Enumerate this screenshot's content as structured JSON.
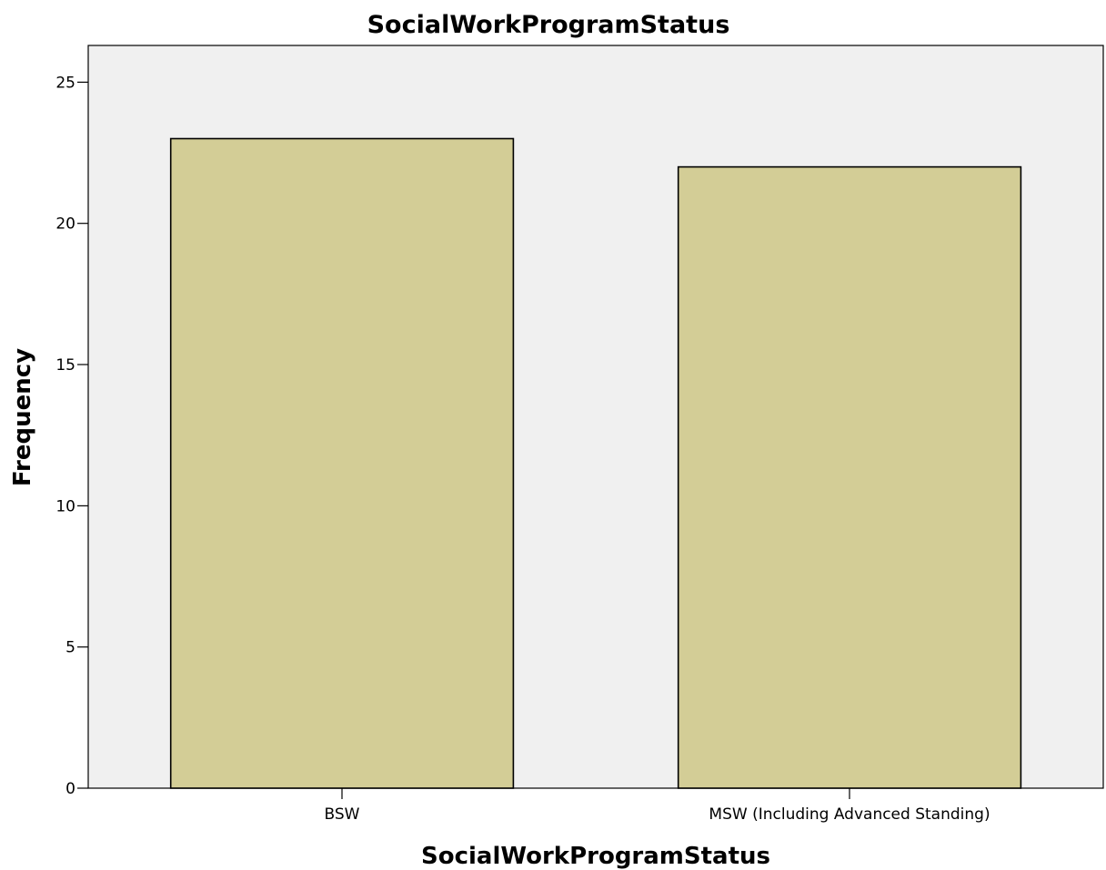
{
  "chart_data": {
    "type": "bar",
    "title": "SocialWorkProgramStatus",
    "xlabel": "SocialWorkProgramStatus",
    "ylabel": "Frequency",
    "categories": [
      "BSW",
      "MSW (Including Advanced Standing)"
    ],
    "values": [
      23,
      22
    ],
    "ylim": [
      0,
      26.3
    ],
    "yticks": [
      0,
      5,
      10,
      15,
      20,
      25
    ],
    "ytick_labels": [
      "0",
      "5",
      "10",
      "15",
      "20",
      "25"
    ],
    "grid": false,
    "legend": "none",
    "colors": {
      "bar_fill": "#d3cd96",
      "bar_stroke": "#000000",
      "plot_background": "#f0f0f0",
      "axis": "#000000"
    }
  }
}
